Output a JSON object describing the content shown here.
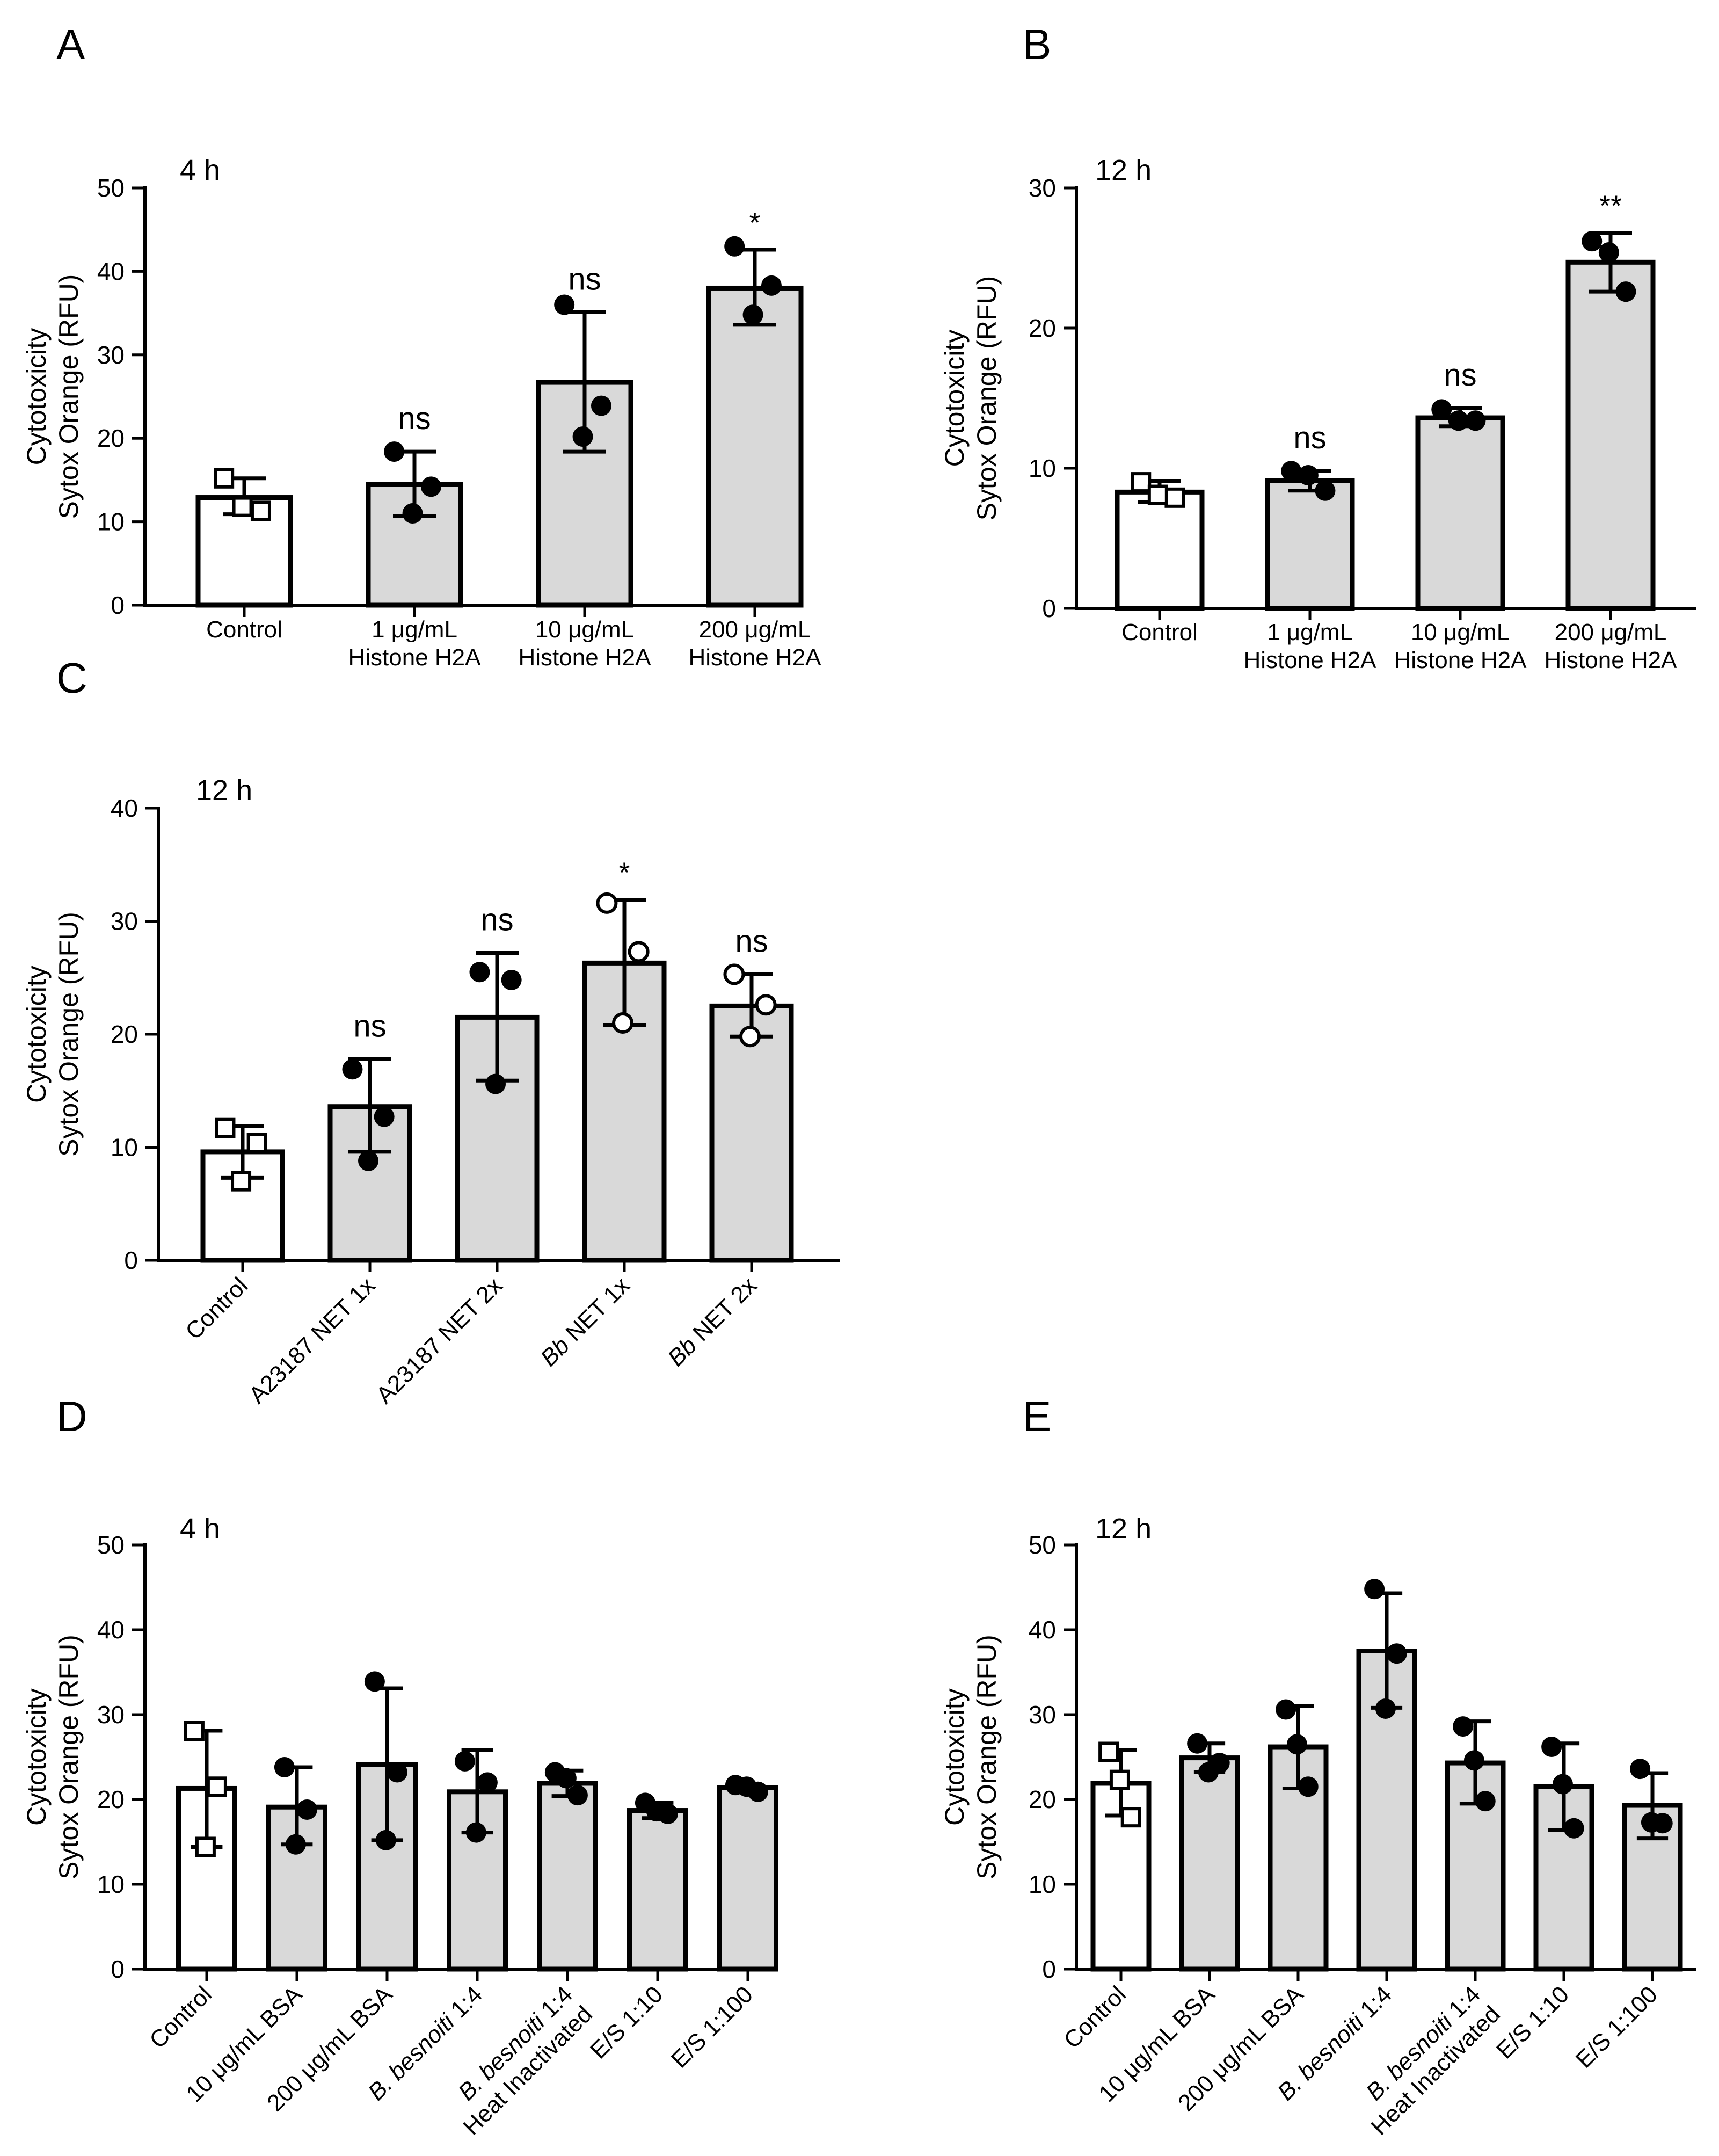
{
  "figure": {
    "ylabel_line1": "Cytotoxicity",
    "ylabel_line2": "Sytox Orange (RFU)"
  },
  "chart_data": [
    {
      "id": "A",
      "panel_label": "A",
      "type": "bar",
      "title": "4 h",
      "ylim": [
        0,
        50
      ],
      "yticks": [
        0,
        10,
        20,
        30,
        40,
        50
      ],
      "tick_labels_rotated": false,
      "categories": [
        {
          "lines": [
            "Control"
          ]
        },
        {
          "lines": [
            "1 μg/mL",
            "Histone H2A"
          ]
        },
        {
          "lines": [
            "10 μg/mL",
            "Histone H2A"
          ]
        },
        {
          "lines": [
            "200 μg/mL",
            "Histone H2A"
          ]
        }
      ],
      "values": [
        12.9,
        14.5,
        26.7,
        38.0
      ],
      "err_high": [
        15.2,
        18.4,
        35.1,
        42.6
      ],
      "err_low": [
        10.9,
        10.7,
        18.4,
        33.6
      ],
      "points": [
        [
          15.2,
          11.3,
          11.8
        ],
        [
          18.4,
          14.2,
          11.0
        ],
        [
          36.0,
          23.9,
          20.2
        ],
        [
          43.0,
          38.3,
          34.8
        ]
      ],
      "marker": [
        "open-square",
        "dot",
        "dot",
        "dot"
      ],
      "fill": [
        "#ffffff",
        "#d9d9d9",
        "#d9d9d9",
        "#d9d9d9"
      ],
      "significance": [
        "",
        "ns",
        "ns",
        "*"
      ]
    },
    {
      "id": "B",
      "panel_label": "B",
      "type": "bar",
      "title": "12 h",
      "ylim": [
        0,
        30
      ],
      "yticks": [
        0,
        10,
        20,
        30
      ],
      "tick_labels_rotated": false,
      "categories": [
        {
          "lines": [
            "Control"
          ]
        },
        {
          "lines": [
            "1 μg/mL",
            "Histone H2A"
          ]
        },
        {
          "lines": [
            "10 μg/mL",
            "Histone H2A"
          ]
        },
        {
          "lines": [
            "200 μg/mL",
            "Histone H2A"
          ]
        }
      ],
      "values": [
        8.3,
        9.1,
        13.6,
        24.7
      ],
      "err_high": [
        9.1,
        9.8,
        14.3,
        26.8
      ],
      "err_low": [
        7.6,
        8.4,
        13.0,
        22.6
      ],
      "points": [
        [
          9.0,
          7.9,
          8.1
        ],
        [
          9.8,
          8.4,
          9.5
        ],
        [
          14.2,
          13.4,
          13.4
        ],
        [
          26.2,
          22.6,
          25.4
        ]
      ],
      "marker": [
        "open-square",
        "dot",
        "dot",
        "dot"
      ],
      "fill": [
        "#ffffff",
        "#d9d9d9",
        "#d9d9d9",
        "#d9d9d9"
      ],
      "significance": [
        "",
        "ns",
        "ns",
        "**"
      ]
    },
    {
      "id": "C",
      "panel_label": "C",
      "type": "bar",
      "title": "12 h",
      "ylim": [
        0,
        40
      ],
      "yticks": [
        0,
        10,
        20,
        30,
        40
      ],
      "tick_labels_rotated": true,
      "categories": [
        {
          "lines": [
            "Control"
          ]
        },
        {
          "lines": [
            "A23187 NET 1x"
          ]
        },
        {
          "lines": [
            "A23187 NET 2x"
          ]
        },
        {
          "lines": [
            "Bb NET 1x"
          ],
          "italic_prefix": "Bb",
          "rest": " NET 1x"
        },
        {
          "lines": [
            "Bb NET 2x"
          ],
          "italic_prefix": "Bb",
          "rest": " NET 2x"
        }
      ],
      "values": [
        9.6,
        13.6,
        21.5,
        26.3,
        22.5
      ],
      "err_high": [
        11.9,
        17.8,
        27.2,
        31.9,
        25.3
      ],
      "err_low": [
        7.3,
        9.6,
        15.9,
        20.8,
        19.8
      ],
      "points": [
        [
          11.7,
          10.4,
          7.0
        ],
        [
          16.9,
          12.7,
          8.8
        ],
        [
          25.5,
          24.8,
          15.6
        ],
        [
          31.6,
          27.3,
          21.0
        ],
        [
          25.3,
          22.6,
          19.8
        ]
      ],
      "marker": [
        "open-square",
        "dot",
        "dot",
        "open-circle",
        "open-circle"
      ],
      "fill": [
        "#ffffff",
        "#d9d9d9",
        "#d9d9d9",
        "#d9d9d9",
        "#d9d9d9"
      ],
      "significance": [
        "",
        "ns",
        "ns",
        "*",
        "ns"
      ]
    },
    {
      "id": "D",
      "panel_label": "D",
      "type": "bar",
      "title": "4 h",
      "ylim": [
        0,
        50
      ],
      "yticks": [
        0,
        10,
        20,
        30,
        40,
        50
      ],
      "tick_labels_rotated": true,
      "categories": [
        {
          "lines": [
            "Control"
          ]
        },
        {
          "lines": [
            "10 μg/mL BSA"
          ]
        },
        {
          "lines": [
            "200 μg/mL BSA"
          ]
        },
        {
          "lines": [
            "B. besnoiti 1:4"
          ],
          "italic_prefix": "B. besnoiti",
          "rest": " 1:4"
        },
        {
          "lines": [
            "B. besnoiti 1:4",
            "Heat Inactivated"
          ],
          "italic_prefix": "B. besnoiti",
          "rest": " 1:4"
        },
        {
          "lines": [
            "E/S 1:10"
          ]
        },
        {
          "lines": [
            "E/S 1:100"
          ]
        }
      ],
      "values": [
        21.3,
        19.1,
        24.1,
        20.9,
        21.9,
        18.7,
        21.4
      ],
      "err_high": [
        28.1,
        23.8,
        33.1,
        25.8,
        23.4,
        19.6,
        21.7
      ],
      "err_low": [
        14.4,
        14.7,
        15.2,
        16.1,
        20.4,
        17.8,
        21.1
      ],
      "points": [
        [
          28.1,
          21.5,
          14.4
        ],
        [
          23.8,
          18.8,
          14.7
        ],
        [
          33.9,
          23.2,
          15.2
        ],
        [
          24.5,
          22.0,
          16.1
        ],
        [
          23.2,
          20.5,
          22.5
        ],
        [
          19.6,
          18.3,
          18.6
        ],
        [
          21.7,
          20.9,
          21.5
        ]
      ],
      "marker": [
        "open-square",
        "dot",
        "dot",
        "dot",
        "dot",
        "dot",
        "dot"
      ],
      "fill": [
        "#ffffff",
        "#d9d9d9",
        "#d9d9d9",
        "#d9d9d9",
        "#d9d9d9",
        "#d9d9d9",
        "#d9d9d9"
      ],
      "significance": [
        "",
        "",
        "",
        "",
        "",
        "",
        ""
      ]
    },
    {
      "id": "E",
      "panel_label": "E",
      "type": "bar",
      "title": "12 h",
      "ylim": [
        0,
        50
      ],
      "yticks": [
        0,
        10,
        20,
        30,
        40,
        50
      ],
      "tick_labels_rotated": true,
      "categories": [
        {
          "lines": [
            "Control"
          ]
        },
        {
          "lines": [
            "10 μg/mL BSA"
          ]
        },
        {
          "lines": [
            "200 μg/mL BSA"
          ]
        },
        {
          "lines": [
            "B. besnoiti 1:4"
          ],
          "italic_prefix": "B. besnoiti",
          "rest": " 1:4"
        },
        {
          "lines": [
            "B. besnoiti 1:4",
            "Heat Inactivated"
          ],
          "italic_prefix": "B. besnoiti",
          "rest": " 1:4"
        },
        {
          "lines": [
            "E/S 1:10"
          ]
        },
        {
          "lines": [
            "E/S 1:100"
          ]
        }
      ],
      "values": [
        21.9,
        24.9,
        26.2,
        37.5,
        24.3,
        21.5,
        19.3
      ],
      "err_high": [
        25.8,
        26.6,
        31.0,
        44.3,
        29.2,
        26.6,
        23.1
      ],
      "err_low": [
        18.1,
        23.2,
        21.3,
        30.8,
        19.5,
        16.4,
        15.4
      ],
      "points": [
        [
          25.6,
          17.9,
          22.3
        ],
        [
          26.6,
          24.3,
          23.2
        ],
        [
          30.6,
          21.5,
          26.5
        ],
        [
          44.8,
          37.2,
          30.7
        ],
        [
          28.6,
          19.8,
          24.6
        ],
        [
          26.2,
          16.6,
          21.8
        ],
        [
          23.6,
          17.2,
          17.3
        ]
      ],
      "marker": [
        "open-square",
        "dot",
        "dot",
        "dot",
        "dot",
        "dot",
        "dot"
      ],
      "fill": [
        "#ffffff",
        "#d9d9d9",
        "#d9d9d9",
        "#d9d9d9",
        "#d9d9d9",
        "#d9d9d9",
        "#d9d9d9"
      ],
      "significance": [
        "",
        "",
        "",
        "",
        "",
        "",
        ""
      ]
    }
  ]
}
